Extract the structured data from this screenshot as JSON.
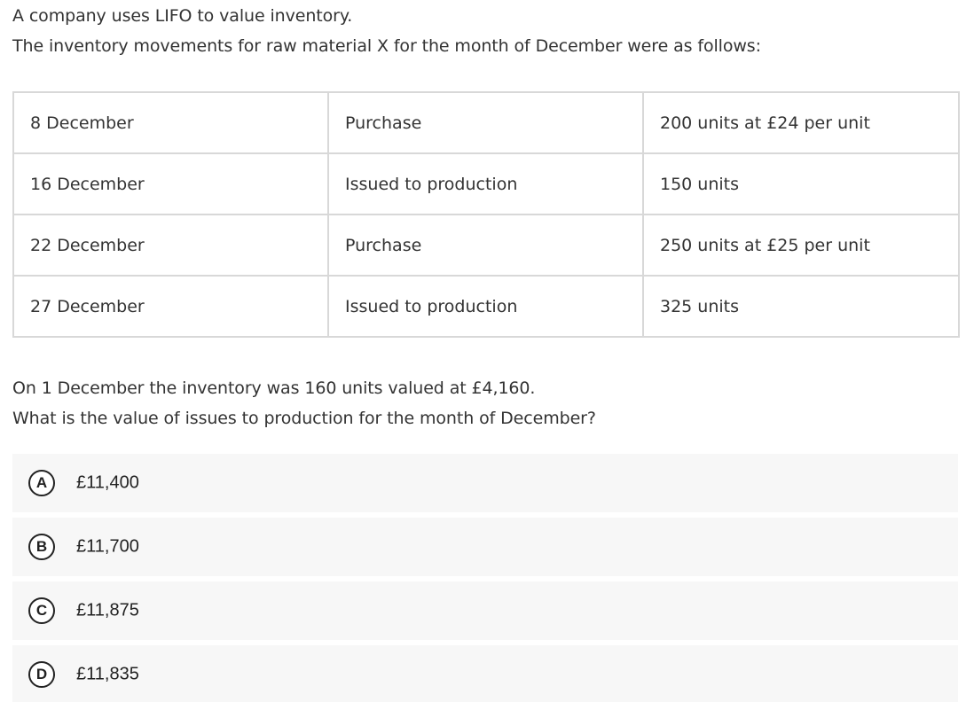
{
  "intro": {
    "line1": "A company uses LIFO to value inventory.",
    "line2": "The inventory movements for raw material X for the month of December were as follows:"
  },
  "movements": [
    {
      "date": "8 December",
      "type": "Purchase",
      "detail": "200 units at £24 per unit"
    },
    {
      "date": "16 December",
      "type": "Issued to production",
      "detail": "150 units"
    },
    {
      "date": "22 December",
      "type": "Purchase",
      "detail": "250 units at £25 per unit"
    },
    {
      "date": "27 December",
      "type": "Issued to production",
      "detail": "325 units"
    }
  ],
  "question": {
    "line1": "On 1 December the inventory was 160 units valued at £4,160.",
    "line2": "What is the value of issues to production for the month of December?"
  },
  "options": [
    {
      "letter": "A",
      "value": "£11,400"
    },
    {
      "letter": "B",
      "value": "£11,700"
    },
    {
      "letter": "C",
      "value": "£11,875"
    },
    {
      "letter": "D",
      "value": "£11,835"
    }
  ]
}
